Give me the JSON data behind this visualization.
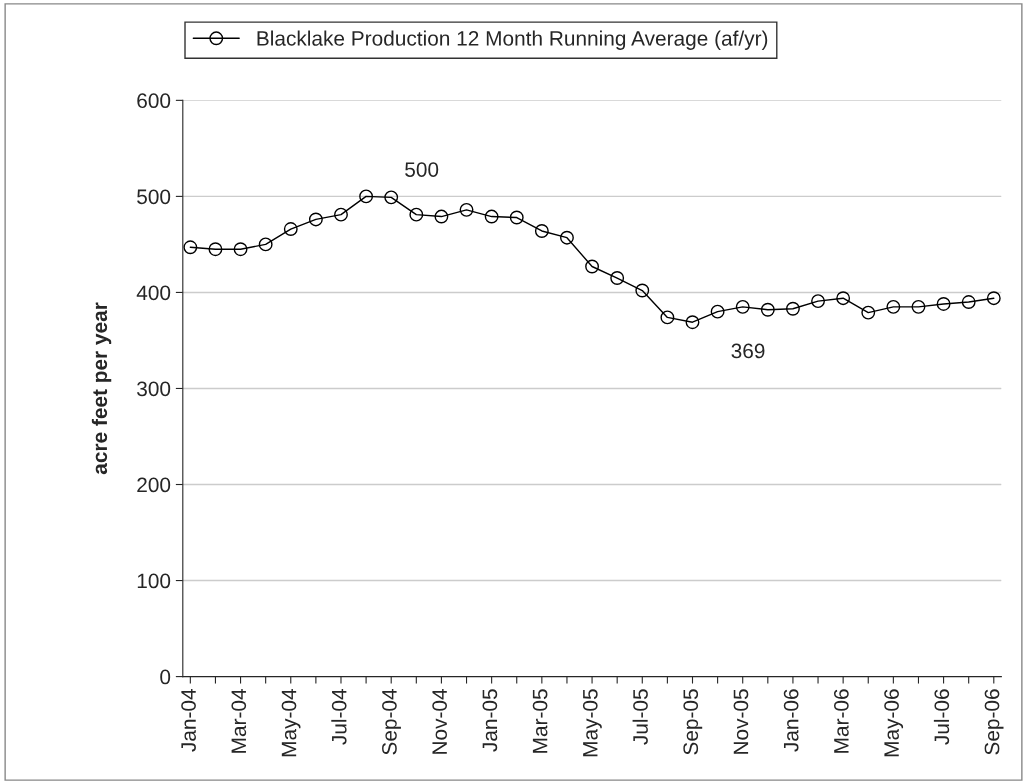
{
  "chart_data": {
    "type": "line",
    "ylabel": "acre feet per year",
    "categories": [
      "Jan-04",
      null,
      "Mar-04",
      null,
      "May-04",
      null,
      "Jul-04",
      null,
      "Sep-04",
      null,
      "Nov-04",
      null,
      "Jan-05",
      null,
      "Mar-05",
      null,
      "May-05",
      null,
      "Jul-05",
      null,
      "Sep-05",
      null,
      "Nov-05",
      null,
      "Jan-06",
      null,
      "Mar-06",
      null,
      "May-06",
      null,
      "Jul-06",
      null,
      "Sep-06"
    ],
    "series": [
      {
        "name": "Blacklake Production 12 Month Running Average (af/yr)",
        "color": "#000000",
        "values": [
          447,
          445,
          445,
          450,
          466,
          476,
          481,
          500,
          499,
          481,
          479,
          486,
          479,
          478,
          464,
          457,
          427,
          415,
          402,
          374,
          369,
          380,
          385,
          382,
          383,
          391,
          394,
          379,
          385,
          385,
          388,
          390,
          394
        ]
      }
    ],
    "annotations": [
      "500",
      "369"
    ],
    "ylim": [
      0,
      600
    ],
    "yticks": [
      0,
      100,
      200,
      300,
      400,
      500,
      600
    ],
    "grid": "y",
    "legend": "top",
    "marker": "circle",
    "line_style": "solid"
  }
}
